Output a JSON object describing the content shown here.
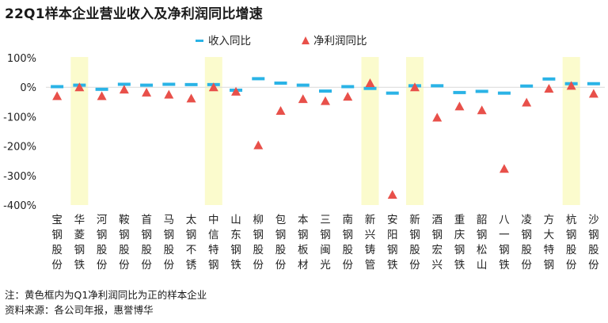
{
  "title": "22Q1样本企业营业收入及净利润同比增速",
  "notes": {
    "highlight_note": "注：黄色框内为Q1净利润同比为正的样本企业",
    "source": "资料来源：各公司年报，惠誉博华"
  },
  "colors": {
    "revenue": "#2ab3e6",
    "profit": "#e8504a",
    "highlight": "#fbfbcd",
    "grid": "#d9d9d9"
  },
  "chart_data": {
    "type": "scatter",
    "title": "22Q1样本企业营业收入及净利润同比增速",
    "ylim": [
      -400,
      100
    ],
    "yticks": [
      100,
      0,
      -100,
      -200,
      -300,
      -400
    ],
    "ytick_labels": [
      "100%",
      "0%",
      "-100%",
      "-200%",
      "-300%",
      "-400%"
    ],
    "grid": false,
    "legend_position": "top-center",
    "categories": [
      "宝钢股份",
      "华菱钢铁",
      "河钢股份",
      "鞍钢股份",
      "首钢股份",
      "马钢股份",
      "太钢不锈",
      "中信特钢",
      "山东钢铁",
      "柳钢股份",
      "包钢股份",
      "本钢板材",
      "三钢闽光",
      "南钢股份",
      "新兴铸管",
      "安阳钢铁",
      "新钢股份",
      "酒钢宏兴",
      "重庆钢铁",
      "韶钢松山",
      "八一钢铁",
      "凌钢股份",
      "方大特钢",
      "杭钢股份",
      "沙钢股份"
    ],
    "highlighted": [
      "华菱钢铁",
      "中信特钢",
      "新兴铸管",
      "新钢股份",
      "杭钢股份"
    ],
    "series": [
      {
        "name": "收入同比",
        "marker": "dash",
        "values": [
          2,
          7,
          -7,
          10,
          7,
          10,
          9,
          9,
          -10,
          29,
          14,
          7,
          -13,
          2,
          -4,
          -20,
          5,
          5,
          -18,
          -14,
          -20,
          4,
          28,
          12,
          12
        ]
      },
      {
        "name": "净利润同比",
        "marker": "triangle",
        "values": [
          -30,
          0,
          -30,
          -8,
          -18,
          -25,
          -38,
          0,
          -15,
          -197,
          -80,
          -40,
          -47,
          -32,
          14,
          -365,
          0,
          -103,
          -65,
          -78,
          -277,
          -52,
          -5,
          5,
          -22
        ]
      }
    ]
  }
}
